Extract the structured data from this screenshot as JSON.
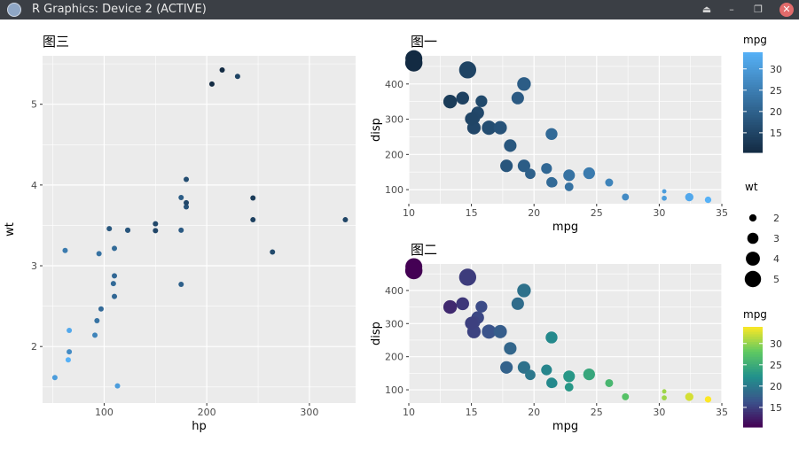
{
  "window": {
    "title": "R Graphics: Device 2 (ACTIVE)",
    "controls": {
      "eject": "⏏",
      "minimize": "–",
      "restore": "❐",
      "close": "✕"
    }
  },
  "colors": {
    "panel_bg": "#ebebeb",
    "grid": "#ffffff",
    "mpg_dark": "#132b43",
    "mpg_light": "#56b1f7",
    "viridis": [
      "#440154",
      "#3b528b",
      "#21918c",
      "#5ec962",
      "#fde725"
    ]
  },
  "legends": {
    "mpg_blue": {
      "title": "mpg",
      "labels": [
        "30",
        "25",
        "20",
        "15"
      ],
      "values": [
        30,
        25,
        20,
        15
      ],
      "range": [
        10.4,
        33.9
      ]
    },
    "wt": {
      "title": "wt",
      "labels": [
        "2",
        "3",
        "4",
        "5"
      ],
      "values": [
        2,
        3,
        4,
        5
      ]
    },
    "mpg_viridis": {
      "title": "mpg",
      "labels": [
        "30",
        "25",
        "20",
        "15"
      ],
      "values": [
        30,
        25,
        20,
        15
      ],
      "range": [
        10.4,
        33.9
      ]
    }
  },
  "chart_data": [
    {
      "id": "plot3",
      "type": "scatter",
      "title": "图三",
      "xlabel": "hp",
      "ylabel": "wt",
      "xlim": [
        40,
        345
      ],
      "ylim": [
        1.3,
        5.6
      ],
      "xticks": [
        100,
        200,
        300
      ],
      "xtick_labels": [
        "100",
        "200",
        "300"
      ],
      "yticks": [
        2,
        3,
        4,
        5
      ],
      "ytick_labels": [
        "2",
        "3",
        "4",
        "5"
      ],
      "grid": true,
      "color_by": "mpg",
      "color_scale": "blue",
      "points": [
        {
          "x": 110,
          "y": 2.62,
          "mpg": 21.0
        },
        {
          "x": 110,
          "y": 2.875,
          "mpg": 21.0
        },
        {
          "x": 93,
          "y": 2.32,
          "mpg": 22.8
        },
        {
          "x": 110,
          "y": 3.215,
          "mpg": 21.4
        },
        {
          "x": 175,
          "y": 3.44,
          "mpg": 18.7
        },
        {
          "x": 105,
          "y": 3.46,
          "mpg": 18.1
        },
        {
          "x": 245,
          "y": 3.57,
          "mpg": 14.3
        },
        {
          "x": 62,
          "y": 3.19,
          "mpg": 24.4
        },
        {
          "x": 95,
          "y": 3.15,
          "mpg": 22.8
        },
        {
          "x": 123,
          "y": 3.44,
          "mpg": 19.2
        },
        {
          "x": 123,
          "y": 3.44,
          "mpg": 17.8
        },
        {
          "x": 180,
          "y": 4.07,
          "mpg": 16.4
        },
        {
          "x": 180,
          "y": 3.73,
          "mpg": 17.3
        },
        {
          "x": 180,
          "y": 3.78,
          "mpg": 15.2
        },
        {
          "x": 205,
          "y": 5.25,
          "mpg": 10.4
        },
        {
          "x": 215,
          "y": 5.424,
          "mpg": 10.4
        },
        {
          "x": 230,
          "y": 5.345,
          "mpg": 14.7
        },
        {
          "x": 66,
          "y": 2.2,
          "mpg": 32.4
        },
        {
          "x": 52,
          "y": 1.615,
          "mpg": 30.4
        },
        {
          "x": 65,
          "y": 1.835,
          "mpg": 33.9
        },
        {
          "x": 97,
          "y": 2.465,
          "mpg": 21.5
        },
        {
          "x": 150,
          "y": 3.52,
          "mpg": 15.5
        },
        {
          "x": 150,
          "y": 3.435,
          "mpg": 15.2
        },
        {
          "x": 245,
          "y": 3.84,
          "mpg": 13.3
        },
        {
          "x": 175,
          "y": 3.845,
          "mpg": 19.2
        },
        {
          "x": 66,
          "y": 1.935,
          "mpg": 27.3
        },
        {
          "x": 91,
          "y": 2.14,
          "mpg": 26.0
        },
        {
          "x": 113,
          "y": 1.513,
          "mpg": 30.4
        },
        {
          "x": 264,
          "y": 3.17,
          "mpg": 15.8
        },
        {
          "x": 175,
          "y": 2.77,
          "mpg": 19.7
        },
        {
          "x": 335,
          "y": 3.57,
          "mpg": 15.0
        },
        {
          "x": 109,
          "y": 2.78,
          "mpg": 21.4
        }
      ]
    },
    {
      "id": "plot1",
      "type": "scatter",
      "title": "图一",
      "xlabel": "mpg",
      "ylabel": "disp",
      "xlim": [
        10.0,
        35.0
      ],
      "ylim": [
        60,
        480
      ],
      "xticks": [
        10,
        15,
        20,
        25,
        30,
        35
      ],
      "xtick_labels": [
        "10",
        "15",
        "20",
        "25",
        "30",
        "35"
      ],
      "yticks": [
        100,
        200,
        300,
        400
      ],
      "ytick_labels": [
        "100",
        "200",
        "300",
        "400"
      ],
      "grid": true,
      "color_by": "mpg",
      "color_scale": "blue",
      "size_by": "wt",
      "points": [
        {
          "x": 21.0,
          "y": 160,
          "wt": 2.62
        },
        {
          "x": 21.0,
          "y": 160,
          "wt": 2.875
        },
        {
          "x": 22.8,
          "y": 108,
          "wt": 2.32
        },
        {
          "x": 21.4,
          "y": 258,
          "wt": 3.215
        },
        {
          "x": 18.7,
          "y": 360,
          "wt": 3.44
        },
        {
          "x": 18.1,
          "y": 225,
          "wt": 3.46
        },
        {
          "x": 14.3,
          "y": 360,
          "wt": 3.57
        },
        {
          "x": 24.4,
          "y": 146.7,
          "wt": 3.19
        },
        {
          "x": 22.8,
          "y": 140.8,
          "wt": 3.15
        },
        {
          "x": 19.2,
          "y": 167.6,
          "wt": 3.44
        },
        {
          "x": 17.8,
          "y": 167.6,
          "wt": 3.44
        },
        {
          "x": 16.4,
          "y": 275.8,
          "wt": 4.07
        },
        {
          "x": 17.3,
          "y": 275.8,
          "wt": 3.73
        },
        {
          "x": 15.2,
          "y": 275.8,
          "wt": 3.78
        },
        {
          "x": 10.4,
          "y": 472,
          "wt": 5.25
        },
        {
          "x": 10.4,
          "y": 460,
          "wt": 5.424
        },
        {
          "x": 14.7,
          "y": 440,
          "wt": 5.345
        },
        {
          "x": 32.4,
          "y": 78.7,
          "wt": 2.2
        },
        {
          "x": 30.4,
          "y": 75.7,
          "wt": 1.615
        },
        {
          "x": 33.9,
          "y": 71.1,
          "wt": 1.835
        },
        {
          "x": 21.5,
          "y": 120.1,
          "wt": 2.465
        },
        {
          "x": 15.5,
          "y": 318,
          "wt": 3.52
        },
        {
          "x": 15.2,
          "y": 304,
          "wt": 3.435
        },
        {
          "x": 13.3,
          "y": 350,
          "wt": 3.84
        },
        {
          "x": 19.2,
          "y": 400,
          "wt": 3.845
        },
        {
          "x": 27.3,
          "y": 79,
          "wt": 1.935
        },
        {
          "x": 26.0,
          "y": 120.3,
          "wt": 2.14
        },
        {
          "x": 30.4,
          "y": 95.1,
          "wt": 1.513
        },
        {
          "x": 15.8,
          "y": 351,
          "wt": 3.17
        },
        {
          "x": 19.7,
          "y": 145,
          "wt": 2.77
        },
        {
          "x": 15.0,
          "y": 301,
          "wt": 3.57
        },
        {
          "x": 21.4,
          "y": 121,
          "wt": 2.78
        }
      ]
    },
    {
      "id": "plot2",
      "type": "scatter",
      "title": "图二",
      "xlabel": "mpg",
      "ylabel": "disp",
      "xlim": [
        10.0,
        35.0
      ],
      "ylim": [
        60,
        480
      ],
      "xticks": [
        10,
        15,
        20,
        25,
        30,
        35
      ],
      "xtick_labels": [
        "10",
        "15",
        "20",
        "25",
        "30",
        "35"
      ],
      "yticks": [
        100,
        200,
        300,
        400
      ],
      "ytick_labels": [
        "100",
        "200",
        "300",
        "400"
      ],
      "grid": true,
      "color_by": "mpg",
      "color_scale": "viridis",
      "size_by": "wt",
      "points": [
        {
          "x": 21.0,
          "y": 160,
          "wt": 2.62
        },
        {
          "x": 21.0,
          "y": 160,
          "wt": 2.875
        },
        {
          "x": 22.8,
          "y": 108,
          "wt": 2.32
        },
        {
          "x": 21.4,
          "y": 258,
          "wt": 3.215
        },
        {
          "x": 18.7,
          "y": 360,
          "wt": 3.44
        },
        {
          "x": 18.1,
          "y": 225,
          "wt": 3.46
        },
        {
          "x": 14.3,
          "y": 360,
          "wt": 3.57
        },
        {
          "x": 24.4,
          "y": 146.7,
          "wt": 3.19
        },
        {
          "x": 22.8,
          "y": 140.8,
          "wt": 3.15
        },
        {
          "x": 19.2,
          "y": 167.6,
          "wt": 3.44
        },
        {
          "x": 17.8,
          "y": 167.6,
          "wt": 3.44
        },
        {
          "x": 16.4,
          "y": 275.8,
          "wt": 4.07
        },
        {
          "x": 17.3,
          "y": 275.8,
          "wt": 3.73
        },
        {
          "x": 15.2,
          "y": 275.8,
          "wt": 3.78
        },
        {
          "x": 10.4,
          "y": 472,
          "wt": 5.25
        },
        {
          "x": 10.4,
          "y": 460,
          "wt": 5.424
        },
        {
          "x": 14.7,
          "y": 440,
          "wt": 5.345
        },
        {
          "x": 32.4,
          "y": 78.7,
          "wt": 2.2
        },
        {
          "x": 30.4,
          "y": 75.7,
          "wt": 1.615
        },
        {
          "x": 33.9,
          "y": 71.1,
          "wt": 1.835
        },
        {
          "x": 21.5,
          "y": 120.1,
          "wt": 2.465
        },
        {
          "x": 15.5,
          "y": 318,
          "wt": 3.52
        },
        {
          "x": 15.2,
          "y": 304,
          "wt": 3.435
        },
        {
          "x": 13.3,
          "y": 350,
          "wt": 3.84
        },
        {
          "x": 19.2,
          "y": 400,
          "wt": 3.845
        },
        {
          "x": 27.3,
          "y": 79,
          "wt": 1.935
        },
        {
          "x": 26.0,
          "y": 120.3,
          "wt": 2.14
        },
        {
          "x": 30.4,
          "y": 95.1,
          "wt": 1.513
        },
        {
          "x": 15.8,
          "y": 351,
          "wt": 3.17
        },
        {
          "x": 19.7,
          "y": 145,
          "wt": 2.77
        },
        {
          "x": 15.0,
          "y": 301,
          "wt": 3.57
        },
        {
          "x": 21.4,
          "y": 121,
          "wt": 2.78
        }
      ]
    }
  ]
}
